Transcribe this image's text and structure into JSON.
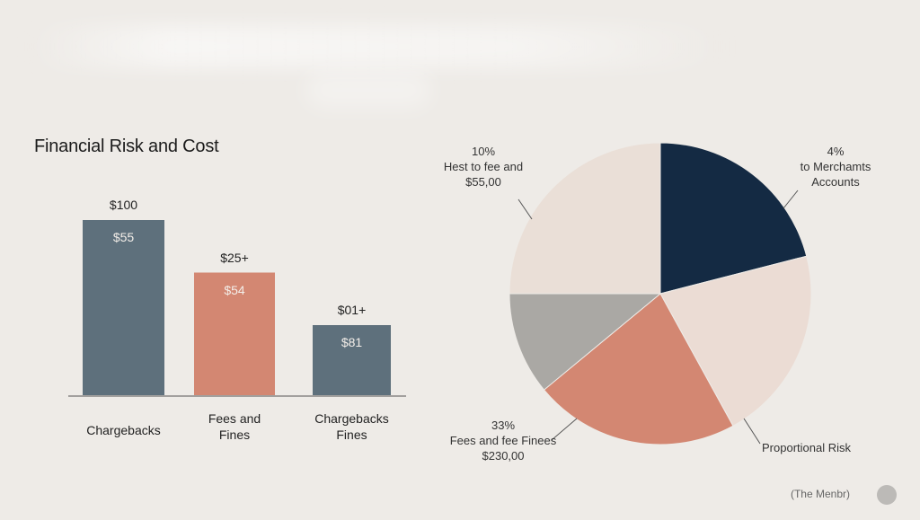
{
  "title": "Financial Risk and Cost",
  "chart_data": [
    {
      "type": "bar",
      "categories": [
        [
          "Chargebacks"
        ],
        [
          "Fees and",
          "Fines"
        ],
        [
          "Chargebacks",
          "Fines"
        ]
      ],
      "values": [
        100,
        70,
        40
      ],
      "top_labels": [
        "$100",
        "$25+",
        "$01+"
      ],
      "inner_labels": [
        "$55",
        "$54",
        "$81"
      ],
      "colors": [
        "#5e707c",
        "#d38772",
        "#5e707c"
      ]
    },
    {
      "type": "pie",
      "slices": [
        {
          "value": 21,
          "color": "#142a43"
        },
        {
          "value": 21,
          "color": "#ebdcd4"
        },
        {
          "value": 22,
          "color": "#d38772"
        },
        {
          "value": 11,
          "color": "#aaa8a4"
        },
        {
          "value": 25,
          "color": "#eadfd7"
        }
      ],
      "callouts": [
        {
          "lines": [
            "10%",
            "Hest to fee and",
            "$55,00"
          ]
        },
        {
          "lines": [
            "4%",
            "to Merchamts",
            "Accounts"
          ]
        },
        {
          "lines": [
            "33%",
            "Fees and fee Finees",
            "$230,00"
          ]
        },
        {
          "lines": [
            "Proportional Risk"
          ]
        }
      ]
    }
  ],
  "footer_text": "(The Menbr)"
}
